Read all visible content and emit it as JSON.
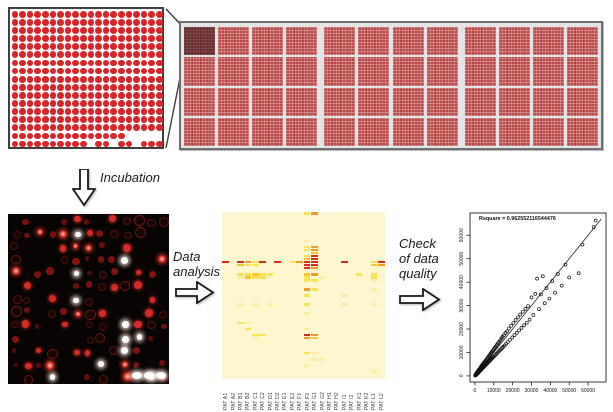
{
  "workflow": {
    "incubation_label": "Incubation",
    "data_analysis_line1": "Data",
    "data_analysis_line2": "analysis",
    "check_line1": "Check",
    "check_line2": "of data",
    "check_line3": "quality"
  },
  "colors": {
    "spot_red": "#d5262b",
    "block_red": "#bc4b49",
    "heatmap_bg": "#fdf6cf",
    "heat_level1": "#f9eda6",
    "heat_level2": "#f7e353",
    "heat_level3": "#f4c62e",
    "heat_level4": "#ef9c28",
    "heat_level5": "#d62e1e"
  },
  "spotted_array": {
    "cols": 20,
    "rows": 17,
    "truncated_row": {
      "index": 15,
      "end_col": 14
    },
    "last_row_groups": [
      [
        0,
        9
      ],
      [
        11,
        12
      ],
      [
        14,
        15
      ],
      [
        17,
        19
      ]
    ]
  },
  "slide": {
    "groups": 3,
    "cols_per_group": 4,
    "rows": 4,
    "highlighted_block": {
      "group": 0,
      "row": 0,
      "col": 0
    }
  },
  "scan": {
    "seed": 9,
    "rows": 13,
    "cols": 13,
    "corner_ellipse_count": 3
  },
  "chart_data": [
    {
      "type": "heatmap",
      "title": "",
      "categories": [
        "PAT A1",
        "PAT A2",
        "PAT B1",
        "PAT B2",
        "PAT C1",
        "PAT C2",
        "PAT D1",
        "PAT D2",
        "PAT E1",
        "PAT E2",
        "PAT F1",
        "PAT F2",
        "PAT G1",
        "PAT G2",
        "PAT H1",
        "PAT H2",
        "PAT I1",
        "PAT I2",
        "PAT K1",
        "PAT K2",
        "PAT L1",
        "PAT L2"
      ],
      "n_rows": 55,
      "legend_position": "none",
      "levels": {
        "1": "pale yellow",
        "2": "yellow",
        "3": "deep yellow",
        "4": "orange",
        "5": "red"
      },
      "cells": [
        [
          0,
          11,
          2
        ],
        [
          0,
          12,
          4
        ],
        [
          9,
          11,
          1
        ],
        [
          11,
          11,
          2
        ],
        [
          11,
          12,
          4
        ],
        [
          12,
          11,
          2
        ],
        [
          12,
          12,
          4
        ],
        [
          13,
          12,
          3
        ],
        [
          14,
          11,
          2
        ],
        [
          14,
          12,
          5
        ],
        [
          15,
          11,
          3
        ],
        [
          15,
          12,
          5
        ],
        [
          16,
          0,
          5
        ],
        [
          16,
          2,
          5
        ],
        [
          16,
          3,
          4
        ],
        [
          16,
          4,
          2
        ],
        [
          16,
          5,
          5
        ],
        [
          16,
          7,
          5
        ],
        [
          16,
          9,
          2
        ],
        [
          16,
          10,
          4
        ],
        [
          16,
          11,
          5
        ],
        [
          16,
          12,
          5
        ],
        [
          16,
          16,
          5
        ],
        [
          16,
          20,
          2
        ],
        [
          16,
          21,
          5
        ],
        [
          17,
          2,
          3
        ],
        [
          17,
          3,
          2
        ],
        [
          17,
          4,
          2
        ],
        [
          17,
          11,
          5
        ],
        [
          17,
          12,
          5
        ],
        [
          17,
          20,
          3
        ],
        [
          17,
          21,
          4
        ],
        [
          18,
          11,
          5
        ],
        [
          18,
          12,
          4
        ],
        [
          20,
          2,
          2
        ],
        [
          20,
          3,
          2
        ],
        [
          20,
          4,
          3
        ],
        [
          20,
          5,
          2
        ],
        [
          20,
          6,
          2
        ],
        [
          20,
          11,
          3
        ],
        [
          20,
          12,
          4
        ],
        [
          20,
          18,
          2
        ],
        [
          20,
          20,
          2
        ],
        [
          21,
          2,
          1
        ],
        [
          21,
          3,
          3
        ],
        [
          21,
          4,
          2
        ],
        [
          21,
          5,
          2
        ],
        [
          21,
          11,
          2
        ],
        [
          21,
          13,
          1
        ],
        [
          21,
          20,
          2
        ],
        [
          22,
          11,
          2
        ],
        [
          22,
          12,
          2
        ],
        [
          22,
          20,
          1
        ],
        [
          25,
          11,
          4
        ],
        [
          25,
          12,
          2
        ],
        [
          25,
          20,
          1
        ],
        [
          27,
          11,
          2
        ],
        [
          27,
          16,
          1
        ],
        [
          30,
          2,
          1
        ],
        [
          30,
          4,
          1
        ],
        [
          30,
          6,
          1
        ],
        [
          30,
          11,
          2
        ],
        [
          30,
          16,
          1
        ],
        [
          30,
          20,
          1
        ],
        [
          33,
          11,
          1
        ],
        [
          36,
          2,
          2
        ],
        [
          36,
          3,
          1
        ],
        [
          38,
          3,
          2
        ],
        [
          38,
          11,
          1
        ],
        [
          40,
          4,
          2
        ],
        [
          40,
          5,
          2
        ],
        [
          40,
          11,
          5
        ],
        [
          40,
          12,
          4
        ],
        [
          41,
          4,
          1
        ],
        [
          41,
          11,
          4
        ],
        [
          41,
          12,
          3
        ],
        [
          46,
          11,
          2
        ],
        [
          46,
          12,
          1
        ],
        [
          48,
          12,
          1
        ],
        [
          48,
          13,
          1
        ],
        [
          50,
          11,
          1
        ],
        [
          52,
          20,
          1
        ]
      ]
    },
    {
      "type": "scatter",
      "annotation": "Rsquare = 0.962552116544476",
      "xlabel": "",
      "ylabel": "",
      "xlim": [
        0,
        65000
      ],
      "ylim": [
        0,
        67000
      ],
      "x_ticks": [
        0,
        10000,
        20000,
        30000,
        40000,
        50000,
        60000
      ],
      "y_ticks": [
        0,
        10000,
        20000,
        30000,
        40000,
        50000,
        60000
      ],
      "grid": false,
      "fit_line": {
        "from": [
          0,
          0
        ],
        "to": [
          67000,
          67000
        ]
      },
      "points": [
        [
          300,
          400
        ],
        [
          500,
          300
        ],
        [
          800,
          900
        ],
        [
          1000,
          700
        ],
        [
          1200,
          1500
        ],
        [
          1500,
          1100
        ],
        [
          1800,
          2200
        ],
        [
          2000,
          1600
        ],
        [
          2200,
          2500
        ],
        [
          2500,
          2000
        ],
        [
          2800,
          3300
        ],
        [
          3000,
          2400
        ],
        [
          3200,
          3800
        ],
        [
          3500,
          2900
        ],
        [
          3800,
          4400
        ],
        [
          4000,
          3300
        ],
        [
          4200,
          4900
        ],
        [
          4500,
          3700
        ],
        [
          4800,
          5500
        ],
        [
          5000,
          4100
        ],
        [
          600,
          750
        ],
        [
          900,
          1200
        ],
        [
          1100,
          850
        ],
        [
          1300,
          1700
        ],
        [
          1600,
          1250
        ],
        [
          1900,
          2400
        ],
        [
          2100,
          1700
        ],
        [
          2400,
          2900
        ],
        [
          2600,
          2100
        ],
        [
          2900,
          3500
        ],
        [
          3100,
          2500
        ],
        [
          3400,
          4100
        ],
        [
          3600,
          2950
        ],
        [
          3900,
          4700
        ],
        [
          4100,
          3400
        ],
        [
          4400,
          5200
        ],
        [
          4600,
          3800
        ],
        [
          4900,
          5800
        ],
        [
          5100,
          4200
        ],
        [
          700,
          500
        ],
        [
          1400,
          1000
        ],
        [
          2300,
          1900
        ],
        [
          3300,
          2700
        ],
        [
          4300,
          3500
        ],
        [
          5200,
          6000
        ],
        [
          5400,
          4400
        ],
        [
          5600,
          6400
        ],
        [
          5800,
          4800
        ],
        [
          6000,
          6900
        ],
        [
          6200,
          5100
        ],
        [
          150,
          200
        ],
        [
          250,
          180
        ],
        [
          350,
          420
        ],
        [
          450,
          520
        ],
        [
          550,
          380
        ],
        [
          650,
          760
        ],
        [
          750,
          600
        ],
        [
          850,
          980
        ],
        [
          950,
          720
        ],
        [
          1050,
          1200
        ],
        [
          1150,
          900
        ],
        [
          1250,
          1400
        ],
        [
          1350,
          1050
        ],
        [
          1450,
          1650
        ],
        [
          1550,
          1200
        ],
        [
          1650,
          1900
        ],
        [
          1750,
          1350
        ],
        [
          1850,
          2100
        ],
        [
          1950,
          1500
        ],
        [
          2050,
          2300
        ],
        [
          6400,
          7300
        ],
        [
          6600,
          5400
        ],
        [
          6800,
          7800
        ],
        [
          7000,
          5800
        ],
        [
          7200,
          8200
        ],
        [
          7400,
          6100
        ],
        [
          7600,
          8700
        ],
        [
          7800,
          6400
        ],
        [
          8000,
          9100
        ],
        [
          8200,
          6800
        ],
        [
          8400,
          9600
        ],
        [
          8600,
          7100
        ],
        [
          8800,
          10000
        ],
        [
          9000,
          7400
        ],
        [
          9200,
          10500
        ],
        [
          9400,
          7800
        ],
        [
          9600,
          10900
        ],
        [
          9800,
          8100
        ],
        [
          10000,
          11400
        ],
        [
          10200,
          8400
        ],
        [
          10500,
          12000
        ],
        [
          10800,
          8900
        ],
        [
          11100,
          12600
        ],
        [
          11400,
          9400
        ],
        [
          11700,
          13300
        ],
        [
          12000,
          9900
        ],
        [
          12300,
          14000
        ],
        [
          12600,
          10400
        ],
        [
          12900,
          14600
        ],
        [
          13200,
          10900
        ],
        [
          13500,
          15300
        ],
        [
          13800,
          11400
        ],
        [
          14100,
          16000
        ],
        [
          14400,
          11900
        ],
        [
          14700,
          16700
        ],
        [
          15000,
          12400
        ],
        [
          15400,
          17400
        ],
        [
          15800,
          13000
        ],
        [
          16200,
          18300
        ],
        [
          16600,
          13700
        ],
        [
          17000,
          19000
        ],
        [
          17500,
          14500
        ],
        [
          18000,
          20200
        ],
        [
          18600,
          15400
        ],
        [
          19200,
          21400
        ],
        [
          19800,
          16400
        ],
        [
          20400,
          22600
        ],
        [
          21000,
          17400
        ],
        [
          21600,
          23800
        ],
        [
          22200,
          18400
        ],
        [
          22800,
          25000
        ],
        [
          23400,
          19400
        ],
        [
          24000,
          26200
        ],
        [
          24700,
          20500
        ],
        [
          25400,
          27400
        ],
        [
          26100,
          21600
        ],
        [
          26800,
          28600
        ],
        [
          27500,
          22700
        ],
        [
          28200,
          29800
        ],
        [
          29000,
          24000
        ],
        [
          30000,
          33500
        ],
        [
          31000,
          26000
        ],
        [
          32000,
          35000
        ],
        [
          33000,
          41500
        ],
        [
          34000,
          28500
        ],
        [
          35000,
          34800
        ],
        [
          36000,
          42500
        ],
        [
          37000,
          31000
        ],
        [
          38000,
          37500
        ],
        [
          39500,
          33000
        ],
        [
          41000,
          40500
        ],
        [
          42500,
          35500
        ],
        [
          44000,
          43500
        ],
        [
          46000,
          38500
        ],
        [
          48000,
          47500
        ],
        [
          50000,
          42000
        ],
        [
          55000,
          43800
        ],
        [
          57000,
          56000
        ],
        [
          63000,
          63500
        ],
        [
          64000,
          66300
        ]
      ]
    }
  ]
}
